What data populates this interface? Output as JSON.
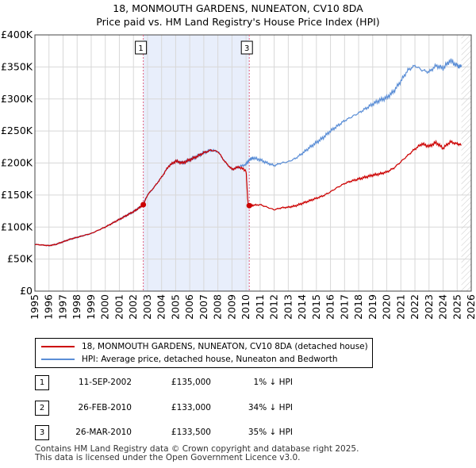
{
  "chart_data": {
    "type": "line",
    "title": "18, MONMOUTH GARDENS, NUNEATON, CV10 8DA",
    "subtitle": "Price paid vs. HM Land Registry's House Price Index (HPI)",
    "xlabel": "",
    "ylabel": "",
    "xlim": [
      1995,
      2026
    ],
    "ylim": [
      0,
      400000
    ],
    "y_ticks": [
      0,
      50000,
      100000,
      150000,
      200000,
      250000,
      300000,
      350000,
      400000
    ],
    "y_tick_labels": [
      "£0",
      "£50K",
      "£100K",
      "£150K",
      "£200K",
      "£250K",
      "£300K",
      "£350K",
      "£400K"
    ],
    "x_ticks": [
      1995,
      1996,
      1997,
      1998,
      1999,
      2000,
      2001,
      2002,
      2003,
      2004,
      2005,
      2006,
      2007,
      2008,
      2009,
      2010,
      2011,
      2012,
      2013,
      2014,
      2015,
      2016,
      2017,
      2018,
      2019,
      2020,
      2021,
      2022,
      2023,
      2024,
      2025,
      2026
    ],
    "x_tick_labels": [
      "1995",
      "1996",
      "1997",
      "1998",
      "1999",
      "2000",
      "2001",
      "2002",
      "2003",
      "2004",
      "2005",
      "2006",
      "2007",
      "2008",
      "2009",
      "2010",
      "2011",
      "2012",
      "2013",
      "2014",
      "2015",
      "2016",
      "2017",
      "2018",
      "2019",
      "2020",
      "2021",
      "2022",
      "2023",
      "2024",
      "2025",
      "2026"
    ],
    "grid": true,
    "shaded_range": [
      2002.7,
      2010.23
    ],
    "data_end": 2025.3,
    "series": [
      {
        "name": "18, MONMOUTH GARDENS, NUNEATON, CV10 8DA (detached house)",
        "color": "#cc0000",
        "x": [
          1995.0,
          1995.5,
          1996.0,
          1996.5,
          1997.0,
          1997.5,
          1998.0,
          1998.5,
          1999.0,
          1999.5,
          2000.0,
          2000.5,
          2001.0,
          2001.5,
          2002.0,
          2002.4,
          2002.7,
          2003.0,
          2003.5,
          2004.0,
          2004.5,
          2005.0,
          2005.5,
          2006.0,
          2006.5,
          2007.0,
          2007.5,
          2008.0,
          2008.5,
          2009.0,
          2009.5,
          2010.0,
          2010.15,
          2010.23,
          2010.5,
          2011.0,
          2011.5,
          2012.0,
          2012.5,
          2013.0,
          2013.5,
          2014.0,
          2014.5,
          2015.0,
          2015.5,
          2016.0,
          2016.5,
          2017.0,
          2017.5,
          2018.0,
          2018.5,
          2019.0,
          2019.5,
          2020.0,
          2020.5,
          2021.0,
          2021.5,
          2022.0,
          2022.5,
          2023.0,
          2023.5,
          2024.0,
          2024.5,
          2025.0,
          2025.3
        ],
        "values": [
          73000,
          72000,
          71000,
          73000,
          77000,
          81000,
          84000,
          87000,
          90000,
          95000,
          100000,
          106000,
          112000,
          118000,
          124000,
          130000,
          135000,
          150000,
          163000,
          178000,
          195000,
          203000,
          200000,
          205000,
          210000,
          216000,
          220000,
          218000,
          202000,
          190000,
          194000,
          188000,
          133000,
          133500,
          134000,
          135000,
          131000,
          127000,
          130000,
          131000,
          133000,
          137000,
          141000,
          145000,
          149000,
          155000,
          162000,
          168000,
          172000,
          175000,
          178000,
          181000,
          183000,
          186000,
          192000,
          202000,
          212000,
          222000,
          230000,
          226000,
          232000,
          223000,
          233000,
          230000,
          228000
        ]
      },
      {
        "name": "HPI: Average price, detached house, Nuneaton and Bedworth",
        "color": "#5b8ed6",
        "x": [
          1995.0,
          1995.5,
          1996.0,
          1996.5,
          1997.0,
          1997.5,
          1998.0,
          1998.5,
          1999.0,
          1999.5,
          2000.0,
          2000.5,
          2001.0,
          2001.5,
          2002.0,
          2002.4,
          2002.7,
          2003.0,
          2003.5,
          2004.0,
          2004.5,
          2005.0,
          2005.5,
          2006.0,
          2006.5,
          2007.0,
          2007.5,
          2008.0,
          2008.5,
          2009.0,
          2009.5,
          2010.0,
          2010.23,
          2010.5,
          2011.0,
          2011.5,
          2012.0,
          2012.5,
          2013.0,
          2013.5,
          2014.0,
          2014.5,
          2015.0,
          2015.5,
          2016.0,
          2016.5,
          2017.0,
          2017.5,
          2018.0,
          2018.5,
          2019.0,
          2019.5,
          2020.0,
          2020.5,
          2021.0,
          2021.5,
          2022.0,
          2022.5,
          2023.0,
          2023.5,
          2024.0,
          2024.5,
          2025.0,
          2025.3
        ],
        "values": [
          73000,
          72000,
          71000,
          73000,
          77000,
          81000,
          84000,
          87000,
          90000,
          95000,
          100000,
          106000,
          112000,
          118000,
          124000,
          130000,
          136000,
          150000,
          163000,
          178000,
          195000,
          203000,
          200000,
          205000,
          210000,
          216000,
          220000,
          218000,
          202000,
          190000,
          194000,
          198000,
          205000,
          208000,
          205000,
          200000,
          196000,
          200000,
          202000,
          207000,
          215000,
          224000,
          232000,
          240000,
          250000,
          258000,
          266000,
          272000,
          278000,
          285000,
          292000,
          298000,
          302000,
          312000,
          328000,
          345000,
          352000,
          345000,
          342000,
          352000,
          348000,
          360000,
          352000,
          350000
        ]
      }
    ],
    "sales": [
      {
        "id": "1",
        "date": "11-SEP-2002",
        "x": 2002.7,
        "price": 135000,
        "hpi": "1% ↓ HPI",
        "price_label": "£135,000",
        "marked": true
      },
      {
        "id": "2",
        "date": "26-FEB-2010",
        "x": 2010.15,
        "price": 133000,
        "hpi": "34% ↓ HPI",
        "price_label": "£133,000",
        "marked": false
      },
      {
        "id": "3",
        "date": "26-MAR-2010",
        "x": 2010.23,
        "price": 133500,
        "hpi": "35% ↓ HPI",
        "price_label": "£133,500",
        "marked": true
      }
    ],
    "colors": {
      "shade": "#e8eefb",
      "grid": "#d8d8d8",
      "sale_line": "#e06080"
    }
  },
  "legend": {
    "red_label": "18, MONMOUTH GARDENS, NUNEATON, CV10 8DA (detached house)",
    "blue_label": "HPI: Average price, detached house, Nuneaton and Bedworth"
  },
  "footer": {
    "line1": "Contains HM Land Registry data © Crown copyright and database right 2025.",
    "line2": "This data is licensed under the Open Government Licence v3.0."
  }
}
